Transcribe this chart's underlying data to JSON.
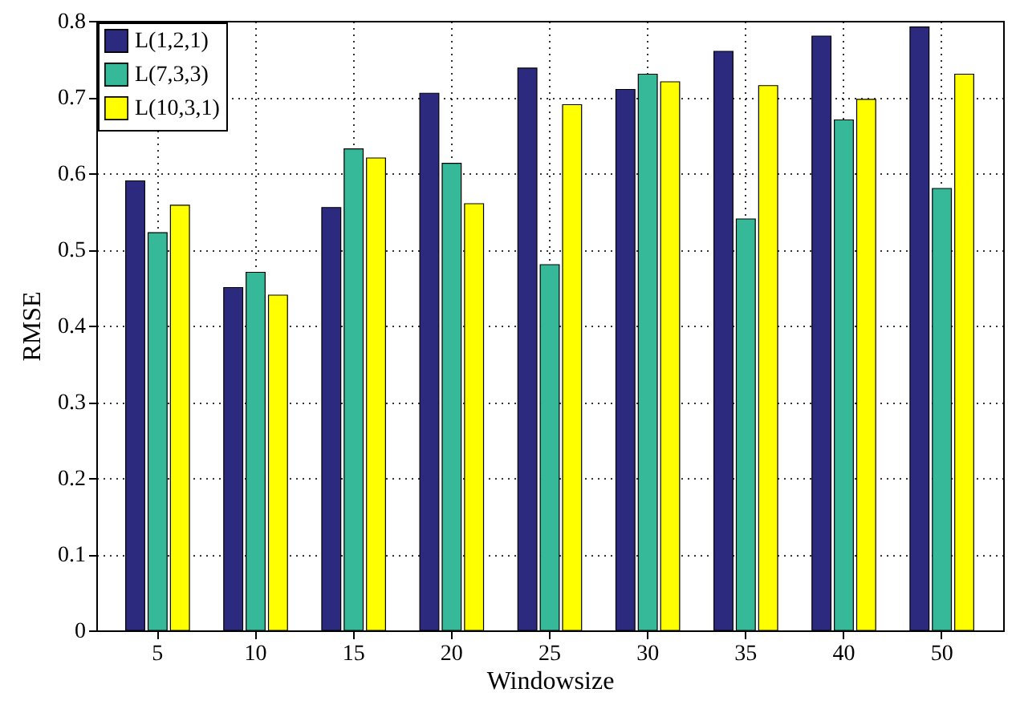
{
  "chart_data": {
    "type": "bar",
    "xlabel": "Windowsize",
    "ylabel": "RMSE",
    "categories": [
      "5",
      "10",
      "15",
      "20",
      "25",
      "30",
      "35",
      "40",
      "50"
    ],
    "series": [
      {
        "name": "L(1,2,1)",
        "color": "#2c2a7f",
        "values": [
          0.59,
          0.45,
          0.555,
          0.705,
          0.738,
          0.71,
          0.76,
          0.78,
          0.792
        ]
      },
      {
        "name": "L(7,3,3)",
        "color": "#35b998",
        "values": [
          0.522,
          0.47,
          0.632,
          0.613,
          0.48,
          0.73,
          0.54,
          0.67,
          0.58
        ]
      },
      {
        "name": "L(10,3,1)",
        "color": "#ffff00",
        "values": [
          0.558,
          0.44,
          0.62,
          0.56,
          0.69,
          0.72,
          0.715,
          0.697,
          0.73
        ]
      }
    ],
    "ylim": [
      0,
      0.8
    ],
    "yticks": [
      0,
      0.1,
      0.2,
      0.3,
      0.4,
      0.5,
      0.6,
      0.7,
      0.8
    ],
    "grid": true,
    "legend": "top left"
  }
}
